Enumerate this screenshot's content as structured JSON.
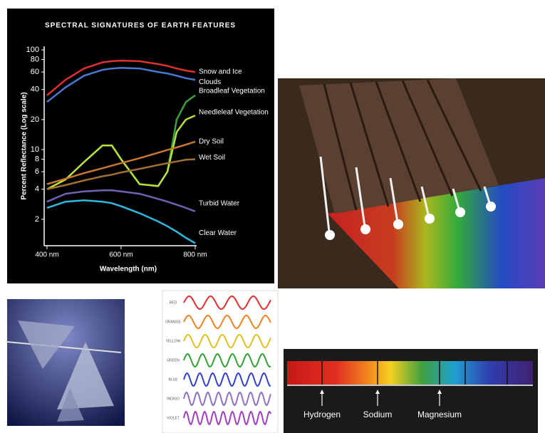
{
  "chart_data": {
    "type": "line",
    "title": "SPECTRAL SIGNATURES OF EARTH FEATURES",
    "x_label": "Wavelength (nm)",
    "y_label": "Percent Reflectance (Log scale)",
    "log_y": true,
    "x": [
      400,
      450,
      500,
      550,
      575,
      600,
      650,
      700,
      725,
      750,
      775,
      800
    ],
    "xlim": [
      400,
      800
    ],
    "xticks": [
      {
        "value": 400,
        "label": "400 nm"
      },
      {
        "value": 600,
        "label": "600 nm"
      },
      {
        "value": 800,
        "label": "800 nm"
      }
    ],
    "ylim": [
      1,
      100
    ],
    "yticks": [
      2,
      4,
      6,
      8,
      10,
      20,
      40,
      60,
      80,
      100
    ],
    "series": [
      {
        "name": "Snow and Ice",
        "color": "#e03030",
        "values": [
          35,
          50,
          65,
          75,
          77,
          78,
          77,
          72,
          69,
          65,
          62,
          60
        ]
      },
      {
        "name": "Clouds",
        "color": "#4a78d0",
        "values": [
          30,
          42,
          55,
          63,
          65,
          66,
          65,
          60,
          58,
          55,
          52,
          50
        ]
      },
      {
        "name": "Broadleaf Vegetation",
        "color": "#3aa040",
        "values": [
          4,
          5,
          7.5,
          11,
          11,
          8,
          4.5,
          4.3,
          6,
          20,
          30,
          35
        ]
      },
      {
        "name": "Needleleaf Vegetation",
        "color": "#b8e040",
        "values": [
          4,
          5,
          7.5,
          11,
          11,
          8,
          4.5,
          4.3,
          6,
          15,
          20,
          22
        ]
      },
      {
        "name": "Dry Soil",
        "color": "#c87830",
        "values": [
          4.5,
          5.1,
          5.8,
          6.5,
          6.9,
          7.3,
          8.2,
          9.3,
          9.9,
          10.5,
          11.2,
          12
        ]
      },
      {
        "name": "Wet Soil",
        "color": "#a07035",
        "values": [
          4,
          4.4,
          4.9,
          5.4,
          5.6,
          5.9,
          6.4,
          7,
          7.3,
          7.6,
          7.9,
          8
        ]
      },
      {
        "name": "Turbid Water",
        "color": "#7060b0",
        "values": [
          3,
          3.6,
          3.8,
          3.9,
          3.9,
          3.8,
          3.6,
          3.2,
          3,
          2.8,
          2.6,
          2.4
        ]
      },
      {
        "name": "Clear Water",
        "color": "#30b8e0",
        "values": [
          2.6,
          3,
          3.1,
          3,
          2.9,
          2.7,
          2.3,
          1.9,
          1.7,
          1.5,
          1.3,
          1.15
        ]
      }
    ]
  },
  "waves": {
    "labels": [
      "RED",
      "ORANGE",
      "YELLOW",
      "GREEN",
      "BLUE",
      "INDIGO",
      "VIOLET"
    ]
  },
  "spectrum": {
    "labels": [
      "Hydrogen",
      "Sodium",
      "Magnesium"
    ]
  }
}
